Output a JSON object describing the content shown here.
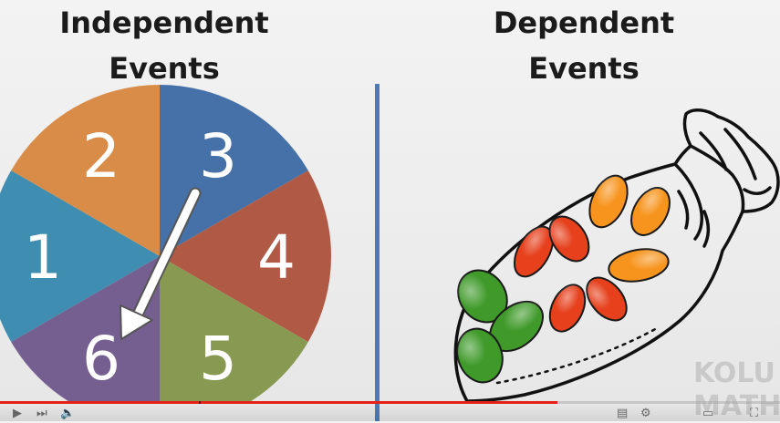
{
  "titles": {
    "left": [
      "Independent",
      "Events"
    ],
    "right": [
      "Dependent",
      "Events"
    ]
  },
  "spinner": {
    "sections": [
      {
        "label": "3",
        "color": "#4670a8"
      },
      {
        "label": "4",
        "color": "#b05a45"
      },
      {
        "label": "5",
        "color": "#889a52"
      },
      {
        "label": "6",
        "color": "#755f91"
      },
      {
        "label": "1",
        "color": "#3f8db0"
      },
      {
        "label": "2",
        "color": "#d98c47"
      }
    ],
    "arrow_points_to": "6"
  },
  "bag": {
    "jelly_beans": [
      {
        "color": "green",
        "hex": "#3f9a2a"
      },
      {
        "color": "green",
        "hex": "#3f9a2a"
      },
      {
        "color": "green",
        "hex": "#3f9a2a"
      },
      {
        "color": "green",
        "hex": "#3f9a2a"
      },
      {
        "color": "red",
        "hex": "#e6401c"
      },
      {
        "color": "red",
        "hex": "#e6401c"
      },
      {
        "color": "red",
        "hex": "#e6401c"
      },
      {
        "color": "red",
        "hex": "#e6401c"
      },
      {
        "color": "orange",
        "hex": "#f7941d"
      },
      {
        "color": "orange",
        "hex": "#f7941d"
      },
      {
        "color": "orange",
        "hex": "#f7941d"
      }
    ]
  },
  "watermark": [
    "KOLU",
    "MATH"
  ],
  "player": {
    "progress": 0.715,
    "played_color": "#e62117",
    "chapter_marks": 1
  },
  "colors": {
    "divider": "#4a7bb7",
    "background": "#eeeeee"
  }
}
